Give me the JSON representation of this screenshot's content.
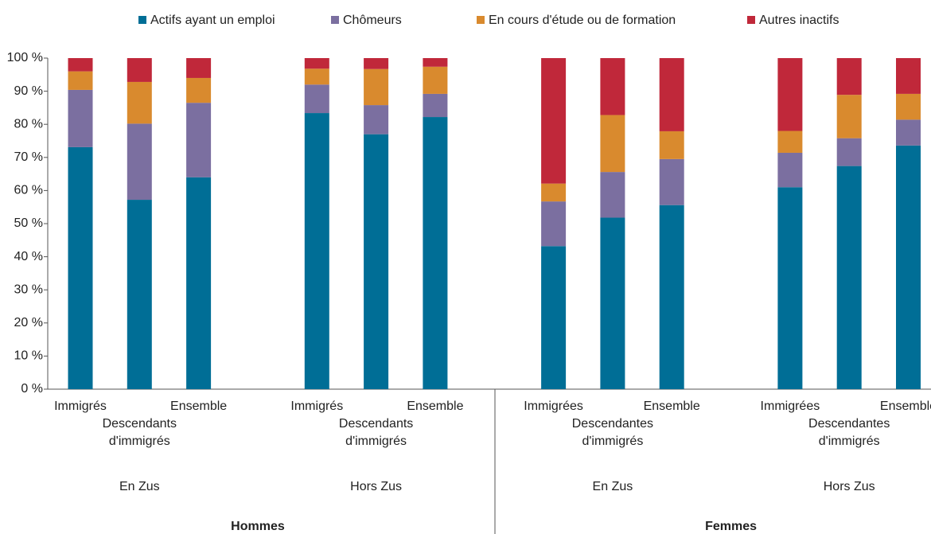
{
  "chart_data": {
    "type": "stacked_bar",
    "categories": [
      "Immigrés",
      "Descendants d'immigrés",
      "Ensemble",
      "Immigrés",
      "Descendants d'immigrés",
      "Ensemble",
      "Immigrées",
      "Descendantes d'immigrés",
      "Ensemble",
      "Immigrées",
      "Descendantes d'immigrés",
      "Ensemble"
    ],
    "groups": [
      "En Zus",
      "Hors Zus",
      "En Zus",
      "Hors Zus"
    ],
    "panels": [
      "Hommes",
      "Femmes"
    ],
    "series": [
      {
        "name": "Actifs ayant un emploi",
        "color": "#006e96",
        "values": [
          73.1,
          57.2,
          64.0,
          83.4,
          77.0,
          82.2,
          43.2,
          51.8,
          55.6,
          61.0,
          67.4,
          73.6
        ]
      },
      {
        "name": "Chômeurs",
        "color": "#7b6fa0",
        "values": [
          17.3,
          23.0,
          22.5,
          8.6,
          8.8,
          7.0,
          13.5,
          13.8,
          13.9,
          10.4,
          8.4,
          7.8
        ]
      },
      {
        "name": "En cours d'étude ou de formation",
        "color": "#d98a2e",
        "values": [
          5.6,
          12.6,
          7.5,
          4.8,
          10.9,
          8.2,
          5.4,
          17.2,
          8.4,
          6.6,
          13.1,
          7.8
        ]
      },
      {
        "name": "Autres inactifs",
        "color": "#c0283a",
        "values": [
          4.0,
          7.2,
          6.0,
          3.2,
          3.3,
          2.6,
          37.9,
          17.2,
          22.1,
          22.0,
          11.1,
          10.8
        ]
      }
    ],
    "ylim": [
      0,
      100
    ],
    "yticks": [
      {
        "value": 0,
        "label": "0 %"
      },
      {
        "value": 10,
        "label": "10 %"
      },
      {
        "value": 20,
        "label": "20 %"
      },
      {
        "value": 30,
        "label": "30 %"
      },
      {
        "value": 40,
        "label": "40 %"
      },
      {
        "value": 50,
        "label": "50 %"
      },
      {
        "value": 60,
        "label": "60 %"
      },
      {
        "value": 70,
        "label": "70 %"
      },
      {
        "value": 80,
        "label": "80 %"
      },
      {
        "value": 90,
        "label": "90 %"
      },
      {
        "value": 100,
        "label": "100 %"
      }
    ],
    "legend": "top",
    "grid": false
  }
}
